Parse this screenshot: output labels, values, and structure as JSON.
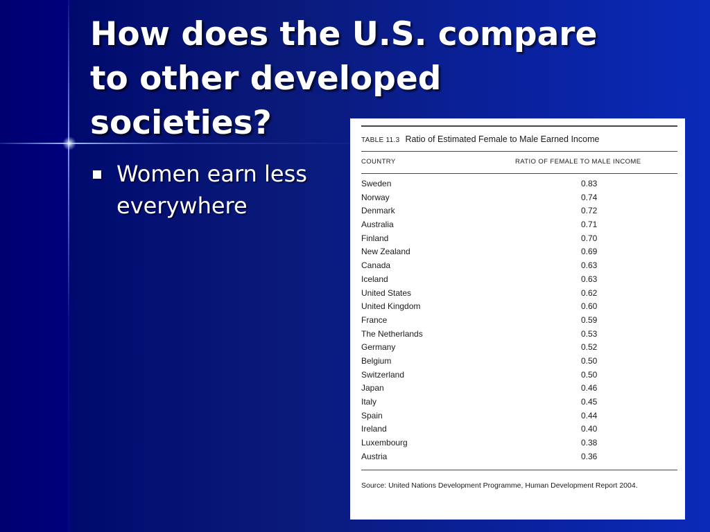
{
  "slide": {
    "title": "How does the U.S. compare\nto other developed\nsocieties?",
    "bullets": [
      "Women earn less everywhere"
    ]
  },
  "table": {
    "label": "TABLE 11.3",
    "title": "Ratio of Estimated Female to Male Earned Income",
    "headers": [
      "COUNTRY",
      "RATIO OF FEMALE TO MALE INCOME"
    ],
    "rows": [
      {
        "country": "Sweden",
        "ratio": "0.83"
      },
      {
        "country": "Norway",
        "ratio": "0.74"
      },
      {
        "country": "Denmark",
        "ratio": "0.72"
      },
      {
        "country": "Australia",
        "ratio": "0.71"
      },
      {
        "country": "Finland",
        "ratio": "0.70"
      },
      {
        "country": "New Zealand",
        "ratio": "0.69"
      },
      {
        "country": "Canada",
        "ratio": "0.63"
      },
      {
        "country": "Iceland",
        "ratio": "0.63"
      },
      {
        "country": "United States",
        "ratio": "0.62"
      },
      {
        "country": "United Kingdom",
        "ratio": "0.60"
      },
      {
        "country": "France",
        "ratio": "0.59"
      },
      {
        "country": "The Netherlands",
        "ratio": "0.53"
      },
      {
        "country": "Germany",
        "ratio": "0.52"
      },
      {
        "country": "Belgium",
        "ratio": "0.50"
      },
      {
        "country": "Switzerland",
        "ratio": "0.50"
      },
      {
        "country": "Japan",
        "ratio": "0.46"
      },
      {
        "country": "Italy",
        "ratio": "0.45"
      },
      {
        "country": "Spain",
        "ratio": "0.44"
      },
      {
        "country": "Ireland",
        "ratio": "0.40"
      },
      {
        "country": "Luxembourg",
        "ratio": "0.38"
      },
      {
        "country": "Austria",
        "ratio": "0.36"
      }
    ],
    "source": "Source: United Nations Development Programme, Human Development Report 2004."
  },
  "colors": {
    "background_dark": "#00007a",
    "background_light": "#0a2ab8",
    "text": "#ffffff",
    "table_background": "#ffffff"
  }
}
